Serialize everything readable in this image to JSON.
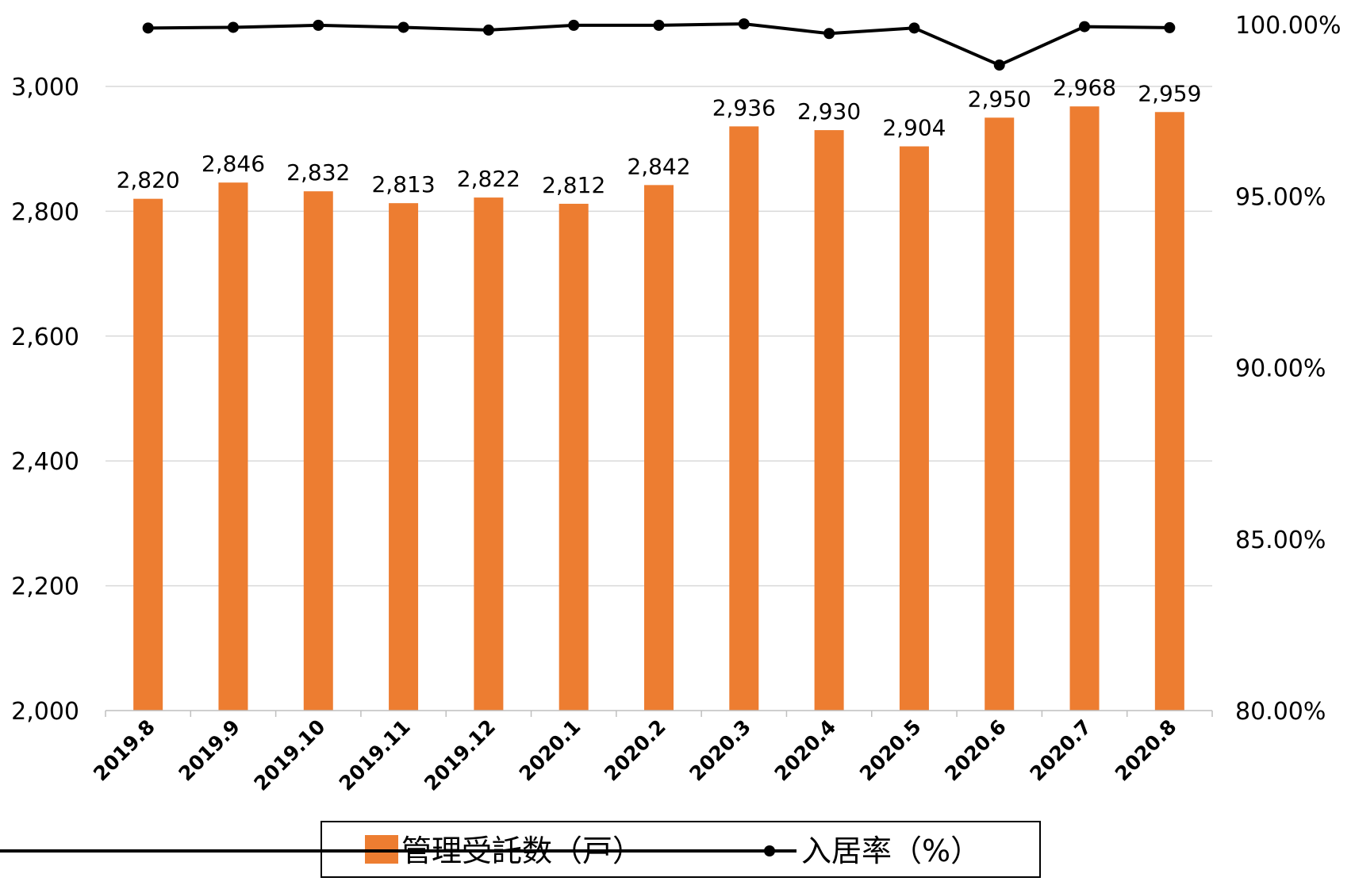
{
  "chart_data": {
    "type": "bar",
    "categories": [
      "2019.8",
      "2019.9",
      "2019.10",
      "2019.11",
      "2019.12",
      "2020.1",
      "2020.2",
      "2020.3",
      "2020.4",
      "2020.5",
      "2020.6",
      "2020.7",
      "2020.8"
    ],
    "series": [
      {
        "name": "管理受託数（戸）",
        "type": "bar",
        "axis": "left",
        "color": "#ED7D31",
        "values": [
          2820,
          2846,
          2832,
          2813,
          2822,
          2812,
          2842,
          2936,
          2930,
          2904,
          2950,
          2968,
          2959
        ],
        "labels": [
          "2,820",
          "2,846",
          "2,832",
          "2,813",
          "2,822",
          "2,812",
          "2,842",
          "2,936",
          "2,930",
          "2,904",
          "2,950",
          "2,968",
          "2,959"
        ]
      },
      {
        "name": "入居率（%）",
        "type": "line",
        "axis": "right",
        "color": "#000000",
        "values": [
          99.9,
          99.92,
          99.98,
          99.92,
          99.84,
          99.98,
          99.98,
          100.02,
          99.74,
          99.9,
          98.82,
          99.94,
          99.91
        ]
      }
    ],
    "left_axis": {
      "min": 2000,
      "max": 3000,
      "ticks": [
        "2,000",
        "2,200",
        "2,400",
        "2,600",
        "2,800",
        "3,000"
      ],
      "tick_values": [
        2000,
        2200,
        2400,
        2600,
        2800,
        3000
      ]
    },
    "right_axis": {
      "min": 80,
      "max": 100,
      "ticks": [
        "80.00%",
        "85.00%",
        "90.00%",
        "95.00%",
        "100.00%"
      ],
      "tick_values": [
        80,
        85,
        90,
        95,
        100
      ]
    },
    "grid": true,
    "legend_position": "bottom",
    "title": "",
    "xlabel": "",
    "ylabel": ""
  }
}
